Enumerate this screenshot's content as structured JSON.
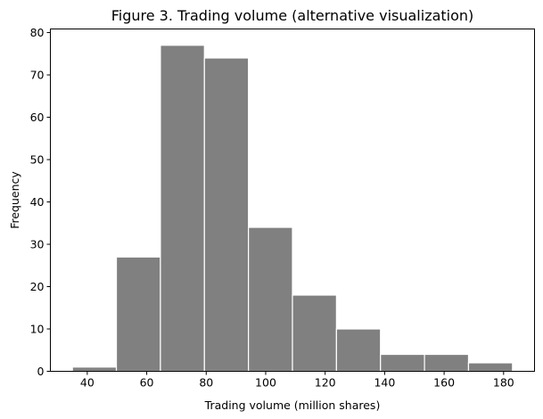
{
  "chart_data": {
    "type": "bar",
    "title": "Figure 3. Trading volume (alternative visualization)",
    "xlabel": "Trading volume (million shares)",
    "ylabel": "Frequency",
    "bins": [
      {
        "x0": 35.0,
        "x1": 49.8,
        "count": 1
      },
      {
        "x0": 49.8,
        "x1": 64.6,
        "count": 27
      },
      {
        "x0": 64.6,
        "x1": 79.4,
        "count": 77
      },
      {
        "x0": 79.4,
        "x1": 94.2,
        "count": 74
      },
      {
        "x0": 94.2,
        "x1": 109.0,
        "count": 34
      },
      {
        "x0": 109.0,
        "x1": 123.8,
        "count": 18
      },
      {
        "x0": 123.8,
        "x1": 138.6,
        "count": 10
      },
      {
        "x0": 138.6,
        "x1": 153.4,
        "count": 4
      },
      {
        "x0": 153.4,
        "x1": 168.2,
        "count": 4
      },
      {
        "x0": 168.2,
        "x1": 183.0,
        "count": 2
      }
    ],
    "xlim": [
      27.6,
      190.4
    ],
    "ylim": [
      0,
      80.85
    ],
    "xticks": [
      40,
      60,
      80,
      100,
      120,
      140,
      160,
      180
    ],
    "yticks": [
      0,
      10,
      20,
      30,
      40,
      50,
      60,
      70,
      80
    ],
    "bar_color": "#808080",
    "edge_color": "#ffffff",
    "grid": false,
    "legend": "none"
  }
}
